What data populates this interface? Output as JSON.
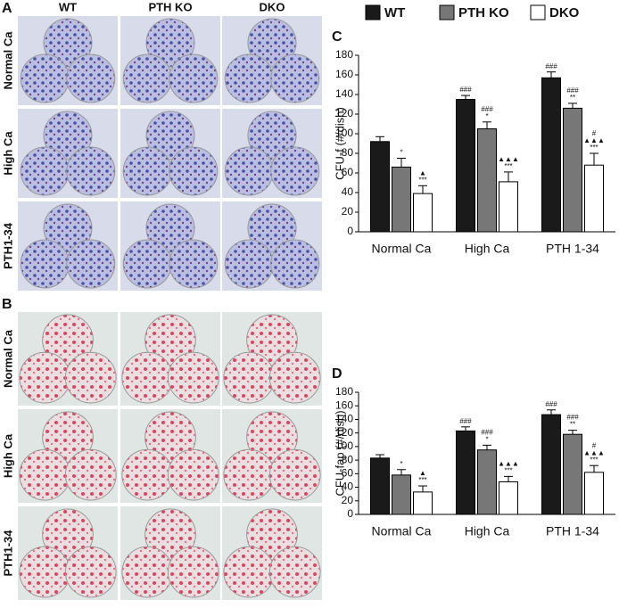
{
  "photo_figure": {
    "panels": [
      {
        "label": "A",
        "columns": [
          "WT",
          "PTH KO",
          "DKO"
        ],
        "rows": [
          "Normal Ca",
          "High Ca",
          "PTH1-34"
        ]
      },
      {
        "label": "B",
        "rows": [
          "Normal Ca",
          "High Ca",
          "PTH1-34"
        ]
      }
    ]
  },
  "chart_data": [
    {
      "type": "bar",
      "panel": "C",
      "y_label": "CFU-f (#/dish)",
      "categories": [
        "Normal Ca",
        "High Ca",
        "PTH 1-34"
      ],
      "ylim": [
        0,
        180
      ],
      "yticks": [
        0,
        20,
        40,
        60,
        80,
        100,
        120,
        140,
        160,
        180
      ],
      "series": [
        {
          "name": "WT",
          "color": "#1a1a1a",
          "values": [
            92,
            135,
            157
          ],
          "errors": [
            5,
            4,
            6
          ],
          "significance": [
            [],
            [
              "###"
            ],
            [
              "###"
            ]
          ]
        },
        {
          "name": "PTH KO",
          "color": "#777777",
          "values": [
            66,
            105,
            126
          ],
          "errors": [
            9,
            7,
            5
          ],
          "significance": [
            [
              "*"
            ],
            [
              "###",
              "*"
            ],
            [
              "###",
              "**"
            ]
          ]
        },
        {
          "name": "DKO",
          "color": "#ffffff",
          "values": [
            39,
            51,
            68
          ],
          "errors": [
            8,
            10,
            12
          ],
          "significance": [
            [
              "▲",
              "***"
            ],
            [
              "▲▲▲",
              "***"
            ],
            [
              "#",
              "▲▲▲",
              "***"
            ]
          ]
        }
      ]
    },
    {
      "type": "bar",
      "panel": "D",
      "y_label": "CFU-fap (#/dish)",
      "categories": [
        "Normal Ca",
        "High Ca",
        "PTH 1-34"
      ],
      "ylim": [
        0,
        180
      ],
      "yticks": [
        0,
        20,
        40,
        60,
        80,
        100,
        120,
        140,
        160,
        180
      ],
      "series": [
        {
          "name": "WT",
          "color": "#1a1a1a",
          "values": [
            83,
            123,
            147
          ],
          "errors": [
            5,
            6,
            7
          ],
          "significance": [
            [],
            [
              "###"
            ],
            [
              "###"
            ]
          ]
        },
        {
          "name": "PTH KO",
          "color": "#777777",
          "values": [
            58,
            95,
            118
          ],
          "errors": [
            8,
            7,
            6
          ],
          "significance": [
            [
              "*"
            ],
            [
              "###",
              "*"
            ],
            [
              "###",
              "**"
            ]
          ]
        },
        {
          "name": "DKO",
          "color": "#ffffff",
          "values": [
            33,
            48,
            62
          ],
          "errors": [
            9,
            8,
            10
          ],
          "significance": [
            [
              "▲",
              "***"
            ],
            [
              "▲▲▲",
              "***"
            ],
            [
              "#",
              "▲▲▲",
              "***"
            ]
          ]
        }
      ]
    }
  ]
}
